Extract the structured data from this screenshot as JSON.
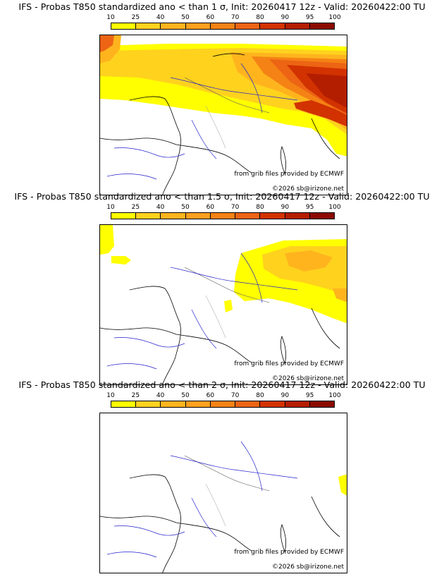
{
  "panels": [
    {
      "title": "IFS - Probas T850  standardized ano < than 1 σ, Init: 20260417 12z - Valid: 20260422:00 TU",
      "source": "from grib files provided by ECMWF",
      "copyright": "©2026 sb@irizone.net"
    },
    {
      "title": "IFS - Probas T850  standardized ano < than 1.5 σ, Init: 20260417 12z - Valid: 20260422:00 TU",
      "source": "from grib files provided by ECMWF",
      "copyright": "©2026 sb@irizone.net"
    },
    {
      "title": "IFS - Probas T850  standardized ano < than 2 σ, Init: 20260417 12z - Valid: 20260422:00 TU",
      "source": "from grib files provided by ECMWF",
      "copyright": "©2026 sb@irizone.net"
    }
  ],
  "colorbar": {
    "labels": [
      "10",
      "25",
      "40",
      "50",
      "60",
      "70",
      "80",
      "90",
      "95",
      "100"
    ],
    "colors": [
      "#ffff00",
      "#ffd21e",
      "#ffb41e",
      "#ffa01e",
      "#f58214",
      "#ec6414",
      "#d23200",
      "#b41e00",
      "#8c0a00",
      "#5a0000"
    ]
  }
}
